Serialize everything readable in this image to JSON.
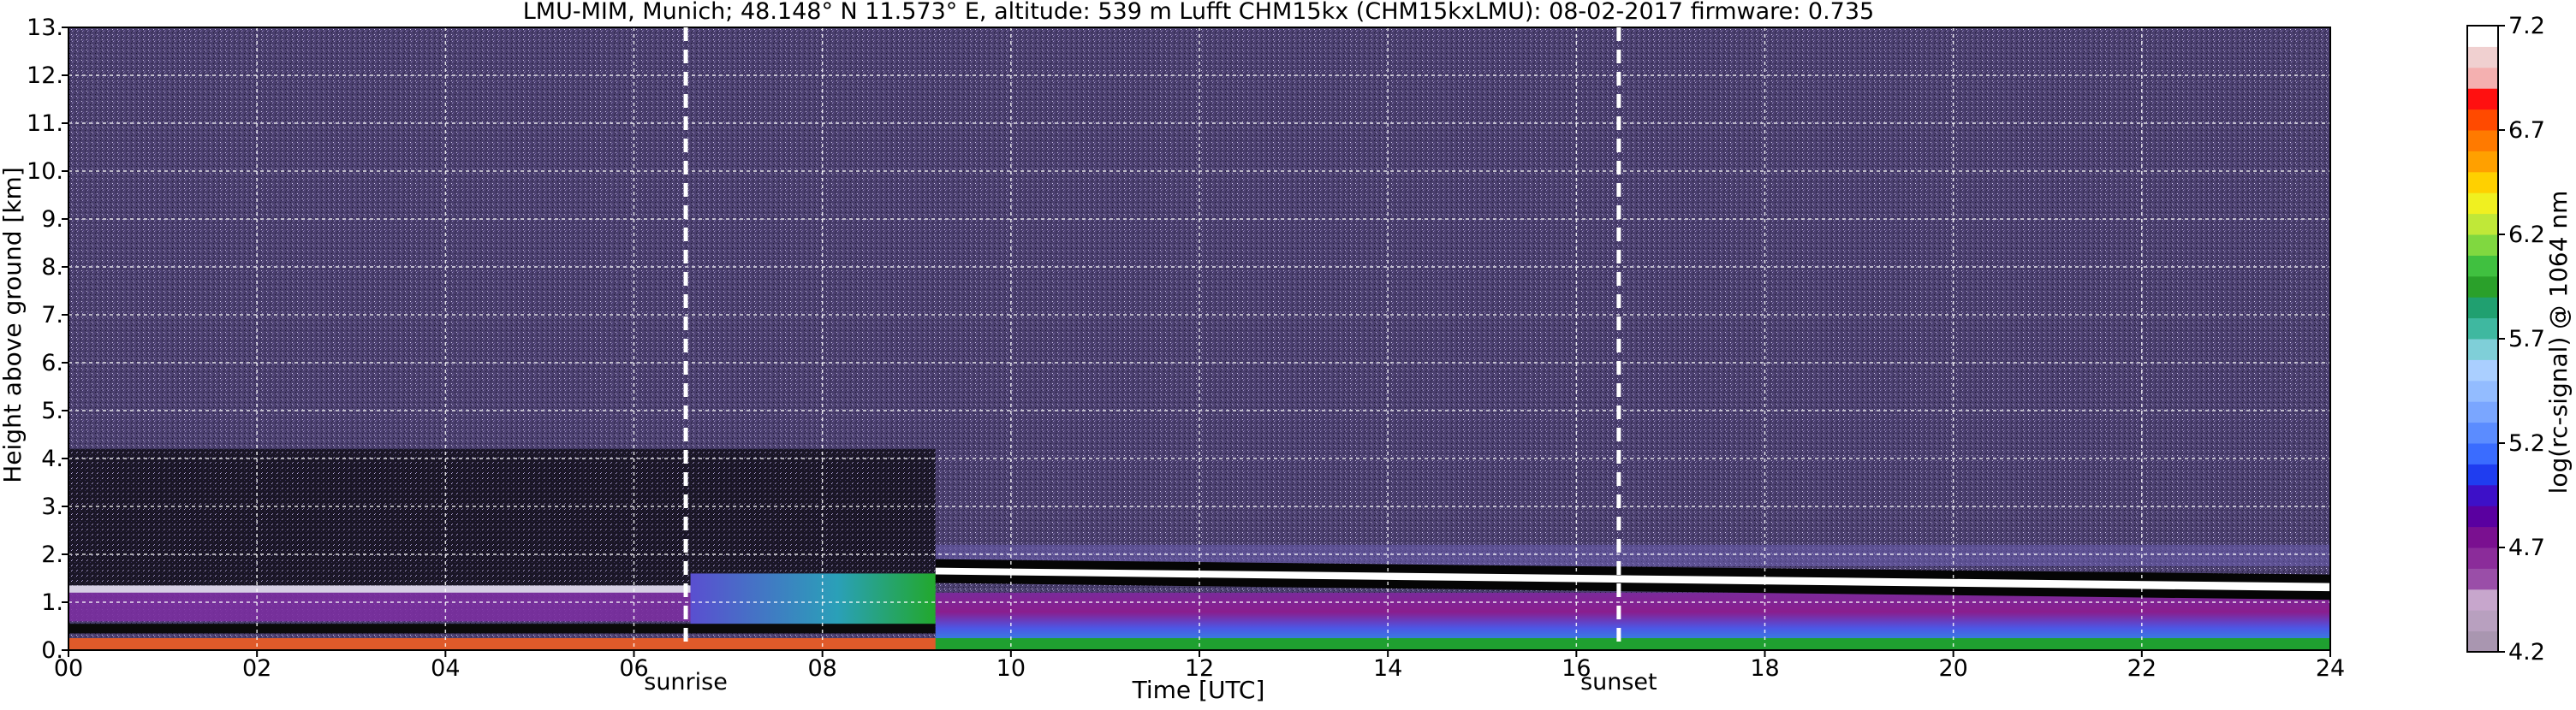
{
  "chart_data": {
    "type": "heatmap",
    "title": "LMU-MIM, Munich; 48.148° N 11.573° E, altitude: 539 m    Lufft CHM15kx (CHM15kxLMU): 08-02-2017    firmware: 0.735",
    "xlabel": "Time [UTC]",
    "ylabel": "Height above ground [km]",
    "xlim": [
      0,
      24
    ],
    "ylim": [
      0,
      13
    ],
    "x_ticks": [
      "00",
      "02",
      "04",
      "06",
      "08",
      "10",
      "12",
      "14",
      "16",
      "18",
      "20",
      "22",
      "24"
    ],
    "y_ticks": [
      "0.",
      "1.",
      "2.",
      "3.",
      "4.",
      "5.",
      "6.",
      "7.",
      "8.",
      "9.",
      "10.",
      "11.",
      "12.",
      "13."
    ],
    "grid": true,
    "annotations": [
      {
        "label": "sunrise",
        "x": 6.55
      },
      {
        "label": "sunset",
        "x": 16.45
      }
    ],
    "colorbar": {
      "label": "log(rc-signal) @ 1064 nm",
      "range": [
        4.2,
        7.2
      ],
      "ticks": [
        "4.2",
        "4.7",
        "5.2",
        "5.7",
        "6.2",
        "6.7",
        "7.2"
      ]
    },
    "layers": [
      {
        "name": "noise-background",
        "x": [
          0,
          24
        ],
        "y": [
          2.2,
          13
        ],
        "value": 4.7
      },
      {
        "name": "elevated-aerosol-layer",
        "x": [
          0,
          9.2
        ],
        "y": [
          0.6,
          1.3
        ],
        "value": 4.8
      },
      {
        "name": "residual-layer-morning",
        "x": [
          6.6,
          9.2
        ],
        "y": [
          0.5,
          1.6
        ],
        "value": 5.7
      },
      {
        "name": "cloud-layer",
        "x": [
          9.2,
          24
        ],
        "y_start": [
          1.7,
          1.72
        ],
        "y_end": [
          1.35,
          1.4
        ],
        "value": 7.2
      },
      {
        "name": "boundary-layer",
        "x": [
          9.2,
          24
        ],
        "y": [
          0.05,
          1.2
        ],
        "value": 5.4
      },
      {
        "name": "surface-layer",
        "x": [
          0,
          24
        ],
        "y": [
          0,
          0.25
        ],
        "value": 6.5
      }
    ]
  }
}
